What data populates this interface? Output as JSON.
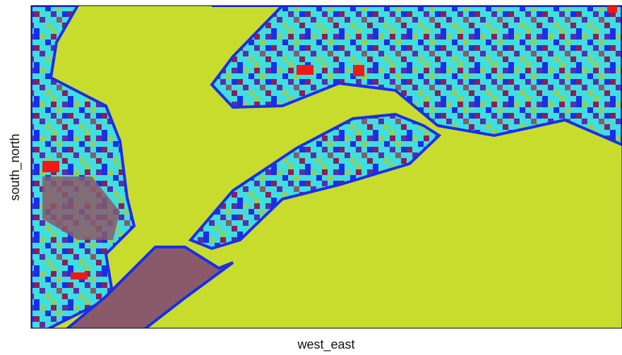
{
  "map": {
    "x_label": "west_east",
    "y_label": "south_north"
  }
}
